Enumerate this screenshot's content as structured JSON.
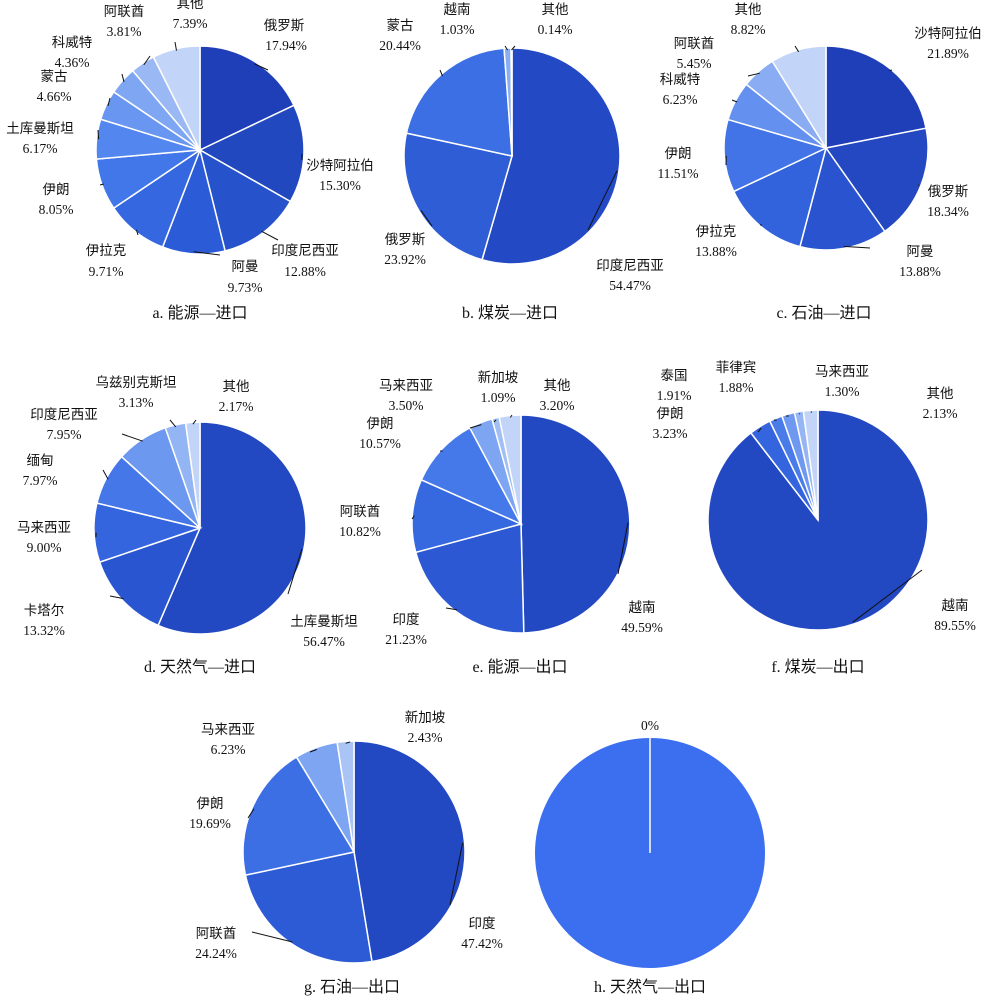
{
  "chart_data": [
    {
      "type": "pie",
      "caption": "a. 能源—进口",
      "slices": [
        {
          "name": "俄罗斯",
          "value": 17.94,
          "label": "17.94%",
          "color": "#1f3fb8"
        },
        {
          "name": "沙特阿拉伯",
          "value": 15.3,
          "label": "15.30%",
          "color": "#2248c0"
        },
        {
          "name": "印度尼西亚",
          "value": 12.88,
          "label": "12.88%",
          "color": "#2652cb"
        },
        {
          "name": "阿曼",
          "value": 9.73,
          "label": "9.73%",
          "color": "#2b5bd6"
        },
        {
          "name": "伊拉克",
          "value": 9.71,
          "label": "9.71%",
          "color": "#3567e0"
        },
        {
          "name": "伊朗",
          "value": 8.05,
          "label": "8.05%",
          "color": "#4277ea"
        },
        {
          "name": "土库曼斯坦",
          "value": 6.17,
          "label": "6.17%",
          "color": "#5386ee"
        },
        {
          "name": "蒙古",
          "value": 4.66,
          "label": "4.66%",
          "color": "#6896f1"
        },
        {
          "name": "科威特",
          "value": 4.36,
          "label": "4.36%",
          "color": "#7ea6f3"
        },
        {
          "name": "阿联酋",
          "value": 3.81,
          "label": "3.81%",
          "color": "#9ab9f4"
        },
        {
          "name": "其他",
          "value": 7.39,
          "label": "7.39%",
          "color": "#c2d4f7"
        }
      ]
    },
    {
      "type": "pie",
      "caption": "b. 煤炭—进口",
      "slices": [
        {
          "name": "印度尼西亚",
          "value": 54.47,
          "label": "54.47%",
          "color": "#2349c4"
        },
        {
          "name": "俄罗斯",
          "value": 23.92,
          "label": "23.92%",
          "color": "#2e5dd6"
        },
        {
          "name": "蒙古",
          "value": 20.44,
          "label": "20.44%",
          "color": "#3b6fe3"
        },
        {
          "name": "越南",
          "value": 1.03,
          "label": "1.03%",
          "color": "#8aaef2"
        },
        {
          "name": "其他",
          "value": 0.14,
          "label": "0.14%",
          "color": "#c2d4f7"
        }
      ]
    },
    {
      "type": "pie",
      "caption": "c. 石油—进口",
      "slices": [
        {
          "name": "沙特阿拉伯",
          "value": 21.89,
          "label": "21.89%",
          "color": "#1f3fb8"
        },
        {
          "name": "俄罗斯",
          "value": 18.34,
          "label": "18.34%",
          "color": "#2448c2"
        },
        {
          "name": "阿曼",
          "value": 13.88,
          "label": "13.88%",
          "color": "#2a54cf"
        },
        {
          "name": "伊拉克",
          "value": 13.88,
          "label": "13.88%",
          "color": "#3362dd"
        },
        {
          "name": "伊朗",
          "value": 11.51,
          "label": "11.51%",
          "color": "#4274e8"
        },
        {
          "name": "科威特",
          "value": 6.23,
          "label": "6.23%",
          "color": "#6490ef"
        },
        {
          "name": "阿联酋",
          "value": 5.45,
          "label": "5.45%",
          "color": "#8aacf2"
        },
        {
          "name": "其他",
          "value": 8.82,
          "label": "8.82%",
          "color": "#c2d4f7"
        }
      ]
    },
    {
      "type": "pie",
      "caption": "d. 天然气—进口",
      "slices": [
        {
          "name": "土库曼斯坦",
          "value": 56.47,
          "label": "56.47%",
          "color": "#2248c2"
        },
        {
          "name": "卡塔尔",
          "value": 13.32,
          "label": "13.32%",
          "color": "#2a55d0"
        },
        {
          "name": "马来西亚",
          "value": 9.0,
          "label": "9.00%",
          "color": "#3464de"
        },
        {
          "name": "缅甸",
          "value": 7.97,
          "label": "7.97%",
          "color": "#4577e9"
        },
        {
          "name": "印度尼西亚",
          "value": 7.95,
          "label": "7.95%",
          "color": "#6c98f0"
        },
        {
          "name": "乌兹别克斯坦",
          "value": 3.13,
          "label": "3.13%",
          "color": "#94b5f4"
        },
        {
          "name": "其他",
          "value": 2.17,
          "label": "2.17%",
          "color": "#c2d4f7"
        }
      ]
    },
    {
      "type": "pie",
      "caption": "e. 能源—出口",
      "slices": [
        {
          "name": "越南",
          "value": 49.59,
          "label": "49.59%",
          "color": "#2248c2"
        },
        {
          "name": "印度",
          "value": 21.23,
          "label": "21.23%",
          "color": "#2c58d3"
        },
        {
          "name": "阿联酋",
          "value": 10.82,
          "label": "10.82%",
          "color": "#3668e0"
        },
        {
          "name": "伊朗",
          "value": 10.57,
          "label": "10.57%",
          "color": "#4579ea"
        },
        {
          "name": "马来西亚",
          "value": 3.5,
          "label": "3.50%",
          "color": "#7ea5f2"
        },
        {
          "name": "新加坡",
          "value": 1.09,
          "label": "1.09%",
          "color": "#a1bff5"
        },
        {
          "name": "其他",
          "value": 3.2,
          "label": "3.20%",
          "color": "#c2d4f7"
        }
      ]
    },
    {
      "type": "pie",
      "caption": "f. 煤炭—出口",
      "slices": [
        {
          "name": "越南",
          "value": 89.55,
          "label": "89.55%",
          "color": "#2248c2"
        },
        {
          "name": "伊朗",
          "value": 3.23,
          "label": "3.23%",
          "color": "#3464de"
        },
        {
          "name": "泰国",
          "value": 1.91,
          "label": "1.91%",
          "color": "#4a7ce9"
        },
        {
          "name": "菲律宾",
          "value": 1.88,
          "label": "1.88%",
          "color": "#6f99f0"
        },
        {
          "name": "马来西亚",
          "value": 1.3,
          "label": "1.30%",
          "color": "#95b5f4"
        },
        {
          "name": "其他",
          "value": 2.13,
          "label": "2.13%",
          "color": "#c2d4f7"
        }
      ]
    },
    {
      "type": "pie",
      "caption": "g. 石油—出口",
      "slices": [
        {
          "name": "印度",
          "value": 47.42,
          "label": "47.42%",
          "color": "#2248c2"
        },
        {
          "name": "阿联酋",
          "value": 24.24,
          "label": "24.24%",
          "color": "#2d5bd6"
        },
        {
          "name": "伊朗",
          "value": 19.69,
          "label": "19.69%",
          "color": "#3b6fe3"
        },
        {
          "name": "马来西亚",
          "value": 6.23,
          "label": "6.23%",
          "color": "#7ea5f2"
        },
        {
          "name": "新加坡",
          "value": 2.43,
          "label": "2.43%",
          "color": "#a9c4f5"
        }
      ]
    },
    {
      "type": "pie",
      "caption": "h. 天然气—出口",
      "slices": [
        {
          "name": "",
          "value": 100,
          "label": "",
          "color": "#3b6ff0"
        }
      ],
      "zero_label": "0%"
    }
  ]
}
